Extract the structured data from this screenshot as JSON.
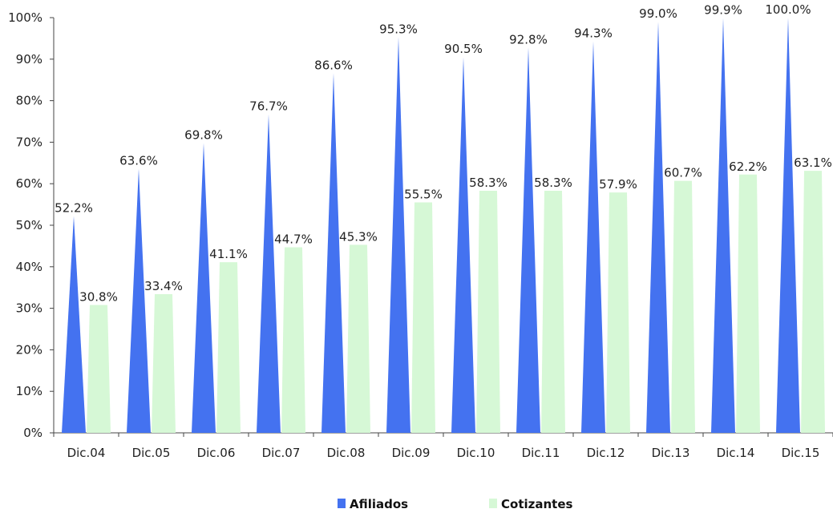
{
  "chart_data": {
    "type": "bar",
    "title": "",
    "xlabel": "",
    "ylabel": "",
    "categories": [
      "Dic.04",
      "Dic.05",
      "Dic.06",
      "Dic.07",
      "Dic.08",
      "Dic.09",
      "Dic.10",
      "Dic.11",
      "Dic.12",
      "Dic.13",
      "Dic.14",
      "Dic.15"
    ],
    "series": [
      {
        "name": "Afiliados",
        "color": "#4472f0",
        "shape": "pyramid",
        "values": [
          52.2,
          63.6,
          69.8,
          76.7,
          86.6,
          95.3,
          90.5,
          92.8,
          94.3,
          99.0,
          99.9,
          100.0
        ],
        "labels": [
          "52.2%",
          "63.6%",
          "69.8%",
          "76.7%",
          "86.6%",
          "95.3%",
          "90.5%",
          "92.8%",
          "94.3%",
          "99.0%",
          "99.9%",
          "100.0%"
        ]
      },
      {
        "name": "Cotizantes",
        "color": "#d6f8d6",
        "shape": "trapezoid",
        "values": [
          30.8,
          33.4,
          41.1,
          44.7,
          45.3,
          55.5,
          58.3,
          58.3,
          57.9,
          60.7,
          62.2,
          63.1
        ],
        "labels": [
          "30.8%",
          "33.4%",
          "41.1%",
          "44.7%",
          "45.3%",
          "55.5%",
          "58.3%",
          "58.3%",
          "57.9%",
          "60.7%",
          "62.2%",
          "63.1%"
        ]
      }
    ],
    "ylim": [
      0,
      100
    ],
    "yticks": [
      "0%",
      "10%",
      "20%",
      "30%",
      "40%",
      "50%",
      "60%",
      "70%",
      "80%",
      "90%",
      "100%"
    ],
    "grid": false,
    "legend_position": "bottom-center"
  }
}
